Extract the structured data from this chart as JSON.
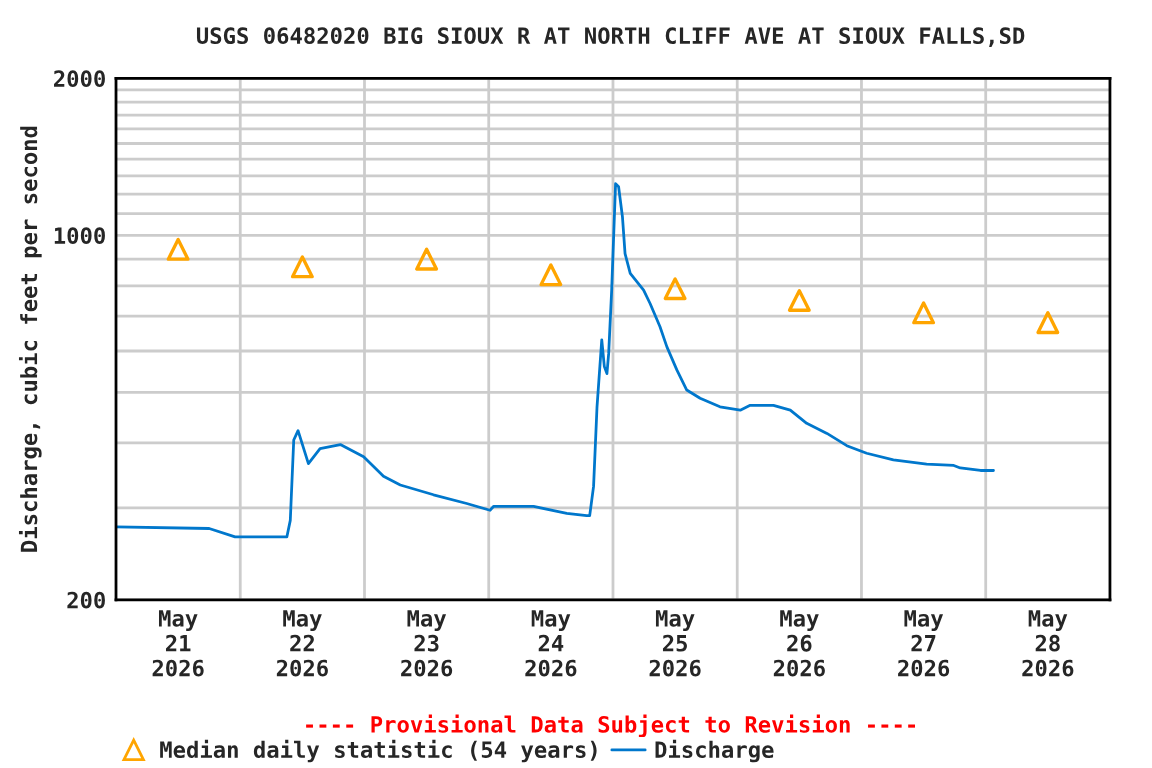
{
  "chart_data": {
    "type": "line",
    "title": "USGS 06482020 BIG SIOUX R AT NORTH CLIFF AVE AT SIOUX FALLS,SD",
    "ylabel": "Discharge, cubic feet per second",
    "annotations": [
      "---- Provisional Data Subject to Revision ----"
    ],
    "log": true,
    "grid": true,
    "legend": "bottom",
    "xlim": [
      "2026-05-21T00:00",
      "2026-05-29T00:00"
    ],
    "xticks": [
      {
        "value": "2026-05-21T12:00",
        "label": "May\n21\n2026"
      },
      {
        "value": "2026-05-22T12:00",
        "label": "May\n22\n2026"
      },
      {
        "value": "2026-05-23T12:00",
        "label": "May\n23\n2026"
      },
      {
        "value": "2026-05-24T12:00",
        "label": "May\n24\n2026"
      },
      {
        "value": "2026-05-25T12:00",
        "label": "May\n25\n2026"
      },
      {
        "value": "2026-05-26T12:00",
        "label": "May\n26\n2026"
      },
      {
        "value": "2026-05-27T12:00",
        "label": "May\n27\n2026"
      },
      {
        "value": "2026-05-28T12:00",
        "label": "May\n28\n2026"
      },
      {
        "value": "2026-05-22T00:00",
        "label": null
      },
      {
        "value": "2026-05-23T00:00",
        "label": null
      },
      {
        "value": "2026-05-24T00:00",
        "label": null
      },
      {
        "value": "2026-05-25T00:00",
        "label": null
      },
      {
        "value": "2026-05-26T00:00",
        "label": null
      },
      {
        "value": "2026-05-27T00:00",
        "label": null
      },
      {
        "value": "2026-05-28T00:00",
        "label": null
      }
    ],
    "ylim": [
      200,
      2000
    ],
    "yticks": [
      200,
      {
        "value": 300,
        "label": null
      },
      {
        "value": 400,
        "label": null
      },
      {
        "value": 500,
        "label": null
      },
      {
        "value": 600,
        "label": null
      },
      {
        "value": 700,
        "label": null
      },
      {
        "value": 800,
        "label": null
      },
      {
        "value": 900,
        "label": null
      },
      1000,
      {
        "value": 1100,
        "label": null
      },
      {
        "value": 1200,
        "label": null
      },
      {
        "value": 1300,
        "label": null
      },
      {
        "value": 1400,
        "label": null
      },
      {
        "value": 1500,
        "label": null
      },
      {
        "value": 1600,
        "label": null
      },
      {
        "value": 1700,
        "label": null
      },
      {
        "value": 1800,
        "label": null
      },
      {
        "value": 1900,
        "label": null
      },
      2000
    ],
    "series": [
      {
        "name": "Median daily statistic (54 years)",
        "type": "scatter",
        "marker": "triangle",
        "color": "#ffa500",
        "x": [
          "2026-05-21T12:00",
          "2026-05-22T12:00",
          "2026-05-23T12:00",
          "2026-05-24T12:00",
          "2026-05-25T12:00",
          "2026-05-26T12:00",
          "2026-05-27T12:00",
          "2026-05-28T12:00"
        ],
        "values": [
          940,
          870,
          900,
          840,
          790,
          750,
          710,
          680
        ]
      },
      {
        "name": "Discharge",
        "marker": "none",
        "color": "#0077cc",
        "x": [
          "2026-05-21T00:00",
          "2026-05-21T18:00",
          "2026-05-21T23:00",
          "2026-05-22T09:00",
          "2026-05-22T09:40",
          "2026-05-22T10:20",
          "2026-05-22T11:10",
          "2026-05-22T13:10",
          "2026-05-22T15:25",
          "2026-05-22T19:20",
          "2026-05-22T23:50",
          "2026-05-23T03:40",
          "2026-05-23T06:55",
          "2026-05-23T13:20",
          "2026-05-23T19:45",
          "2026-05-24T00:15",
          "2026-05-24T00:55",
          "2026-05-24T08:40",
          "2026-05-24T15:05",
          "2026-05-24T18:55",
          "2026-05-24T19:30",
          "2026-05-24T20:15",
          "2026-05-24T20:55",
          "2026-05-24T21:50",
          "2026-05-24T22:20",
          "2026-05-24T22:50",
          "2026-05-24T23:10",
          "2026-05-24T23:45",
          "2026-05-25T00:30",
          "2026-05-25T01:05",
          "2026-05-25T01:50",
          "2026-05-25T02:20",
          "2026-05-25T03:20",
          "2026-05-25T05:55",
          "2026-05-25T07:10",
          "2026-05-25T09:05",
          "2026-05-25T10:25",
          "2026-05-25T12:20",
          "2026-05-25T14:15",
          "2026-05-25T16:50",
          "2026-05-25T20:40",
          "2026-05-26T00:35",
          "2026-05-26T02:30",
          "2026-05-26T07:00",
          "2026-05-26T10:15",
          "2026-05-26T13:25",
          "2026-05-26T17:20",
          "2026-05-26T21:10",
          "2026-05-27T01:00",
          "2026-05-27T06:10",
          "2026-05-27T12:35",
          "2026-05-27T17:50",
          "2026-05-27T19:05",
          "2026-05-27T23:00",
          "2026-05-28T01:30"
        ],
        "values": [
          276,
          274,
          264,
          264,
          284,
          405,
          422,
          365,
          390,
          397,
          376,
          345,
          332,
          318,
          306,
          297,
          302,
          302,
          293,
          290,
          290,
          330,
          469,
          630,
          560,
          543,
          593,
          785,
          1256,
          1239,
          1084,
          922,
          845,
          785,
          740,
          668,
          611,
          552,
          505,
          487,
          469,
          462,
          472,
          472,
          462,
          436,
          417,
          395,
          382,
          371,
          364,
          362,
          358,
          354,
          354
        ]
      }
    ]
  }
}
